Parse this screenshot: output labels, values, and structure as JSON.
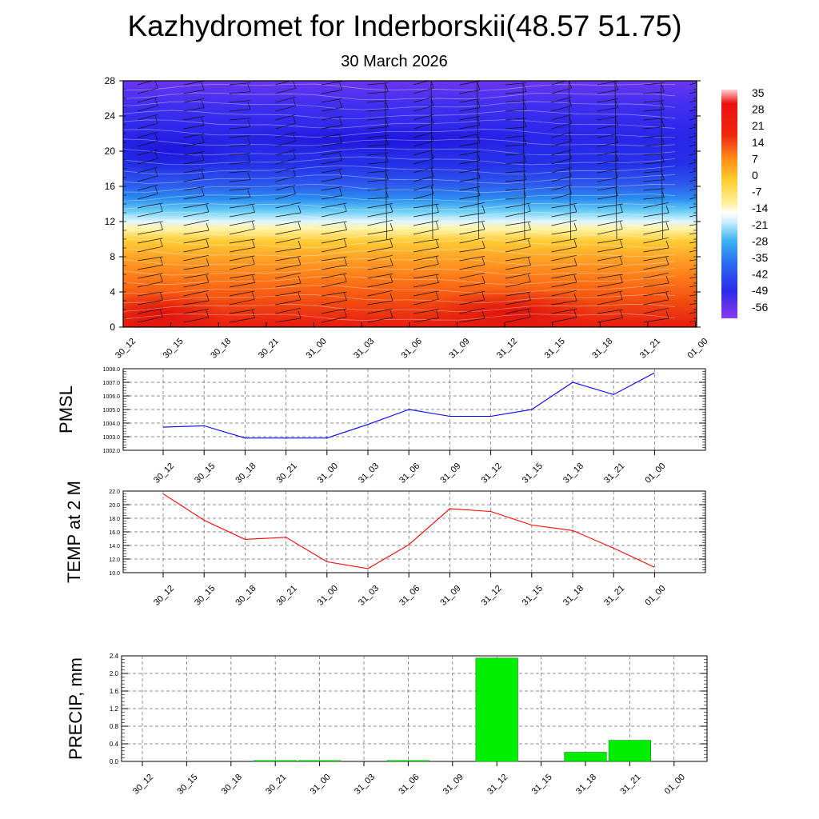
{
  "title": "Kazhydromet for Inderborskii(48.57 51.75)",
  "subtitle": "30 March 2026",
  "time_labels": [
    "30_12",
    "30_15",
    "30_18",
    "30_21",
    "31_00",
    "31_03",
    "31_06",
    "31_09",
    "31_12",
    "31_15",
    "31_18",
    "31_21",
    "01_00"
  ],
  "chart_data": [
    {
      "type": "heatmap",
      "name": "temperature-cross-section",
      "x": [
        "30_12",
        "30_15",
        "30_18",
        "30_21",
        "31_00",
        "31_03",
        "31_06",
        "31_09",
        "31_12",
        "31_15",
        "31_18",
        "31_21",
        "01_00"
      ],
      "ylim": [
        0,
        28
      ],
      "yticks": [
        0,
        4,
        8,
        12,
        16,
        20,
        24,
        28
      ],
      "colorbar_labels": [
        "35",
        "28",
        "21",
        "14",
        "7",
        "0",
        "-7",
        "-14",
        "-21",
        "-28",
        "-35",
        "-42",
        "-49",
        "-56"
      ],
      "colorbar_range": [
        -63,
        38
      ],
      "colors": {
        "hot": "#e81010",
        "warm": "#ff8c1a",
        "mild": "#ffd030",
        "neutral": "#fff7a0",
        "cool": "#d8f4ff",
        "cold": "#3cb8f0",
        "freezing": "#2a5cf0",
        "deep": "#2418e8",
        "top": "#8a2be2"
      },
      "wind_barbs": true
    },
    {
      "type": "line",
      "name": "pmsl",
      "ylabel": "PMSL",
      "x": [
        "30_12",
        "30_15",
        "30_18",
        "30_21",
        "31_00",
        "31_03",
        "31_06",
        "31_09",
        "31_12",
        "31_15",
        "31_18",
        "31_21",
        "01_00"
      ],
      "values": [
        1003.7,
        1003.8,
        1002.9,
        1002.9,
        1002.9,
        1003.9,
        1005.0,
        1004.5,
        1004.5,
        1005.0,
        1007.0,
        1006.1,
        1007.7
      ],
      "ylim": [
        1002.0,
        1008.0
      ],
      "yticks": [
        "1002.0",
        "1003.0",
        "1004.0",
        "1005.0",
        "1006.0",
        "1007.0",
        "1008.0"
      ],
      "color": "#0000ff"
    },
    {
      "type": "line",
      "name": "temp2m",
      "ylabel": "TEMP at 2 M",
      "x": [
        "30_12",
        "30_15",
        "30_18",
        "30_21",
        "31_00",
        "31_03",
        "31_06",
        "31_09",
        "31_12",
        "31_15",
        "31_18",
        "31_21",
        "01_00"
      ],
      "values": [
        21.6,
        17.7,
        14.9,
        15.2,
        11.6,
        10.6,
        14.1,
        19.4,
        19.0,
        17.0,
        16.2,
        13.6,
        10.8
      ],
      "ylim": [
        10.0,
        22.0
      ],
      "yticks": [
        "10.0",
        "12.0",
        "14.0",
        "16.0",
        "18.0",
        "20.0",
        "22.0"
      ],
      "color": "#ff0000"
    },
    {
      "type": "bar",
      "name": "precip",
      "ylabel": "PRECIP, mm",
      "categories": [
        "30_12",
        "30_15",
        "30_18",
        "30_21",
        "31_00",
        "31_03",
        "31_06",
        "31_09",
        "31_12",
        "31_15",
        "31_18",
        "31_21",
        "01_00"
      ],
      "values": [
        0,
        0,
        0,
        0.02,
        0.02,
        0,
        0.02,
        0,
        2.35,
        0,
        0.21,
        0.48,
        0
      ],
      "ylim": [
        0,
        2.4
      ],
      "yticks": [
        "0.0",
        "0.4",
        "0.8",
        "1.2",
        "1.6",
        "2.0",
        "2.4"
      ],
      "color": "#00ee00"
    }
  ]
}
